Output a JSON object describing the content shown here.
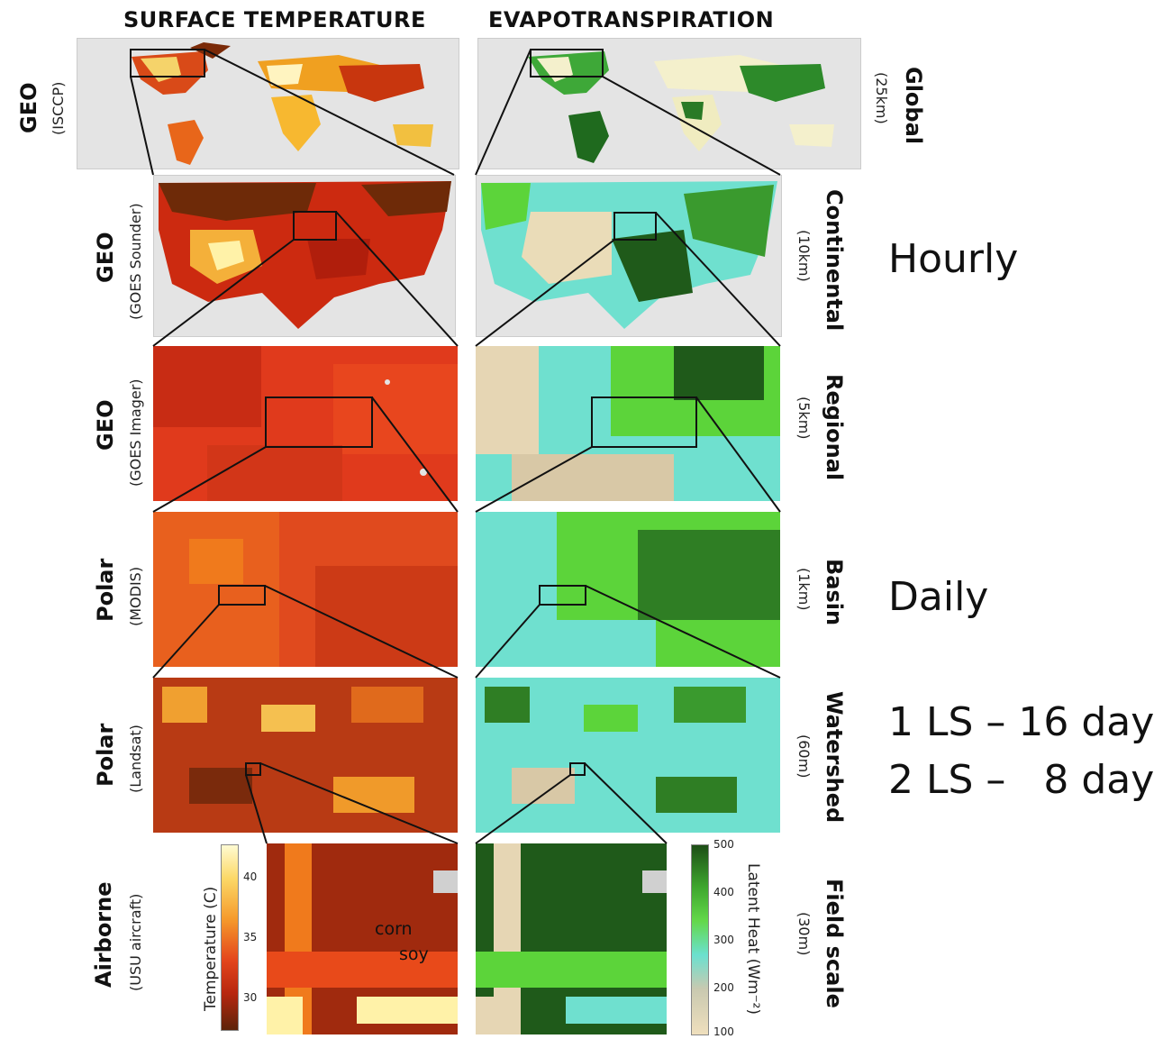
{
  "columns": {
    "left_title": "SURFACE TEMPERATURE",
    "right_title": "EVAPOTRANSPIRATION"
  },
  "rows": [
    {
      "platform": "GEO",
      "instrument": "(ISCCP)",
      "scale": "Global",
      "resolution": "(25km)"
    },
    {
      "platform": "GEO",
      "instrument": "(GOES Sounder)",
      "scale": "Continental",
      "resolution": "(10km)"
    },
    {
      "platform": "GEO",
      "instrument": "(GOES Imager)",
      "scale": "Regional",
      "resolution": "(5km)"
    },
    {
      "platform": "Polar",
      "instrument": "(MODIS)",
      "scale": "Basin",
      "resolution": "(1km)"
    },
    {
      "platform": "Polar",
      "instrument": "(Landsat)",
      "scale": "Watershed",
      "resolution": "(60m)"
    },
    {
      "platform": "Airborne",
      "instrument": "(USU aircraft)",
      "scale": "Field scale",
      "resolution": "(30m)"
    }
  ],
  "frequency": {
    "hourly": "Hourly",
    "daily": "Daily",
    "landsat_1": "1 LS – 16 day",
    "landsat_2": "2 LS –   8 day"
  },
  "temperature_colorbar": {
    "title": "Temperature (C)",
    "ticks": [
      "40",
      "35",
      "30"
    ]
  },
  "latent_heat_colorbar": {
    "title": "Latent Heat (Wm⁻²)",
    "ticks": [
      "500",
      "400",
      "300",
      "200",
      "100"
    ]
  },
  "field_labels": {
    "corn": "corn",
    "soy": "soy"
  },
  "colors": {
    "temp_dark": "#6e2a08",
    "temp_red": "#e0301a",
    "temp_orange": "#f07a1c",
    "temp_yellow": "#fff2a8",
    "et_dark": "#1f5a1a",
    "et_green": "#5cd43a",
    "et_cyan": "#6fe0cf",
    "et_tan": "#e8d6b0",
    "background_gray": "#e4e4e4"
  }
}
